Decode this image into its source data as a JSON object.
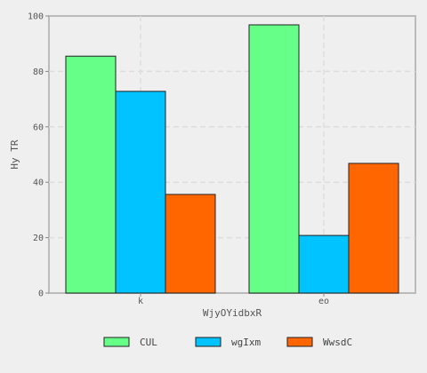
{
  "chart_data": {
    "type": "bar",
    "categories": [
      "k",
      "eo"
    ],
    "series": [
      {
        "name": "CUL",
        "values": [
          85.5,
          96.8
        ],
        "color": "#66ff88"
      },
      {
        "name": "wgIxm",
        "values": [
          72.8,
          20.8
        ],
        "color": "#00c3ff"
      },
      {
        "name": "WwsdC",
        "values": [
          35.6,
          46.8
        ],
        "color": "#ff6600"
      }
    ],
    "title": "",
    "xlabel": "WjyOYidbxR",
    "ylabel": "Hy TR",
    "ylim": [
      0,
      100
    ],
    "yticks": [
      0,
      20,
      40,
      60,
      80,
      100
    ],
    "grid": true,
    "legend_position": "bottom"
  }
}
